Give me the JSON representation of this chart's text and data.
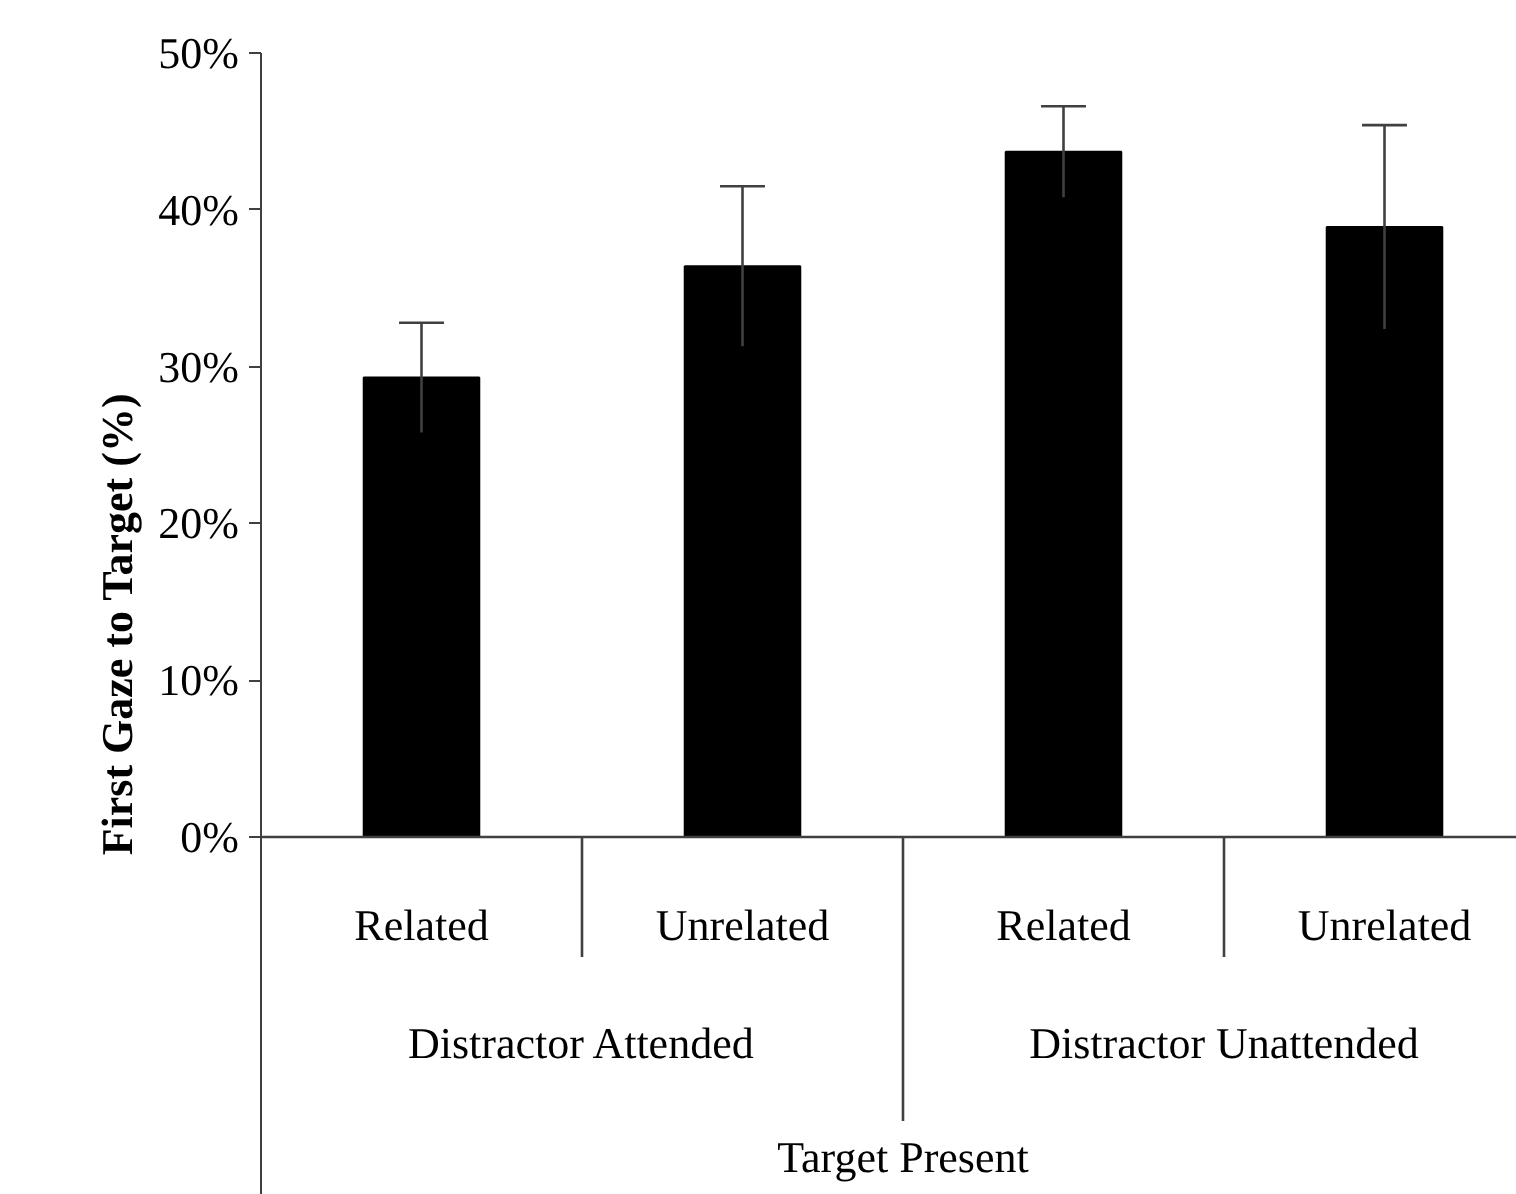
{
  "chart_data": {
    "type": "bar",
    "ylabel": "First Gaze to Target (%)",
    "categories": [
      "Related",
      "Unrelated",
      "Related",
      "Unrelated"
    ],
    "values": [
      29.3,
      36.4,
      43.7,
      38.9
    ],
    "errors": [
      3.5,
      5.1,
      2.9,
      6.5
    ],
    "color": "#000000",
    "ylim": [
      0,
      50
    ],
    "yticks": [
      {
        "value": 0,
        "label": "0%"
      },
      {
        "value": 10,
        "label": "10%"
      },
      {
        "value": 20,
        "label": "20%"
      },
      {
        "value": 30,
        "label": "30%"
      },
      {
        "value": 40,
        "label": "40%"
      },
      {
        "value": 50,
        "label": "50%"
      }
    ],
    "annotations": [
      "Distractor Attended",
      "Distractor Unattended",
      "Target Present"
    ],
    "grid": false
  }
}
